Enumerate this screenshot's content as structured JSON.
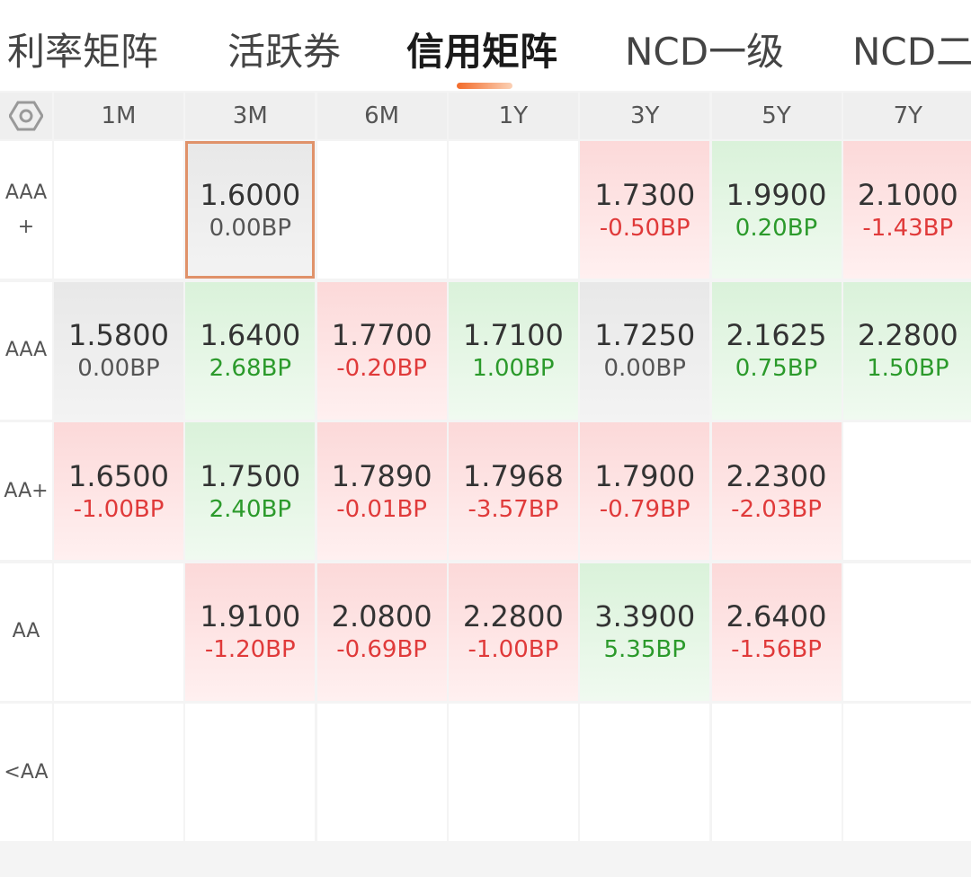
{
  "tabs": [
    "利率矩阵",
    "活跃券",
    "信用矩阵",
    "NCD一级",
    "NCD二级"
  ],
  "active_tab": 2,
  "table": {
    "columns": [
      "1M",
      "3M",
      "6M",
      "1Y",
      "3Y",
      "5Y",
      "7Y"
    ],
    "rows": [
      {
        "label": "AAA+",
        "cells": [
          null,
          {
            "rate": "1.6000",
            "change": "0.00BP"
          },
          null,
          null,
          {
            "rate": "1.7300",
            "change": "-0.50BP"
          },
          {
            "rate": "1.9900",
            "change": "0.20BP"
          },
          {
            "rate": "2.1000",
            "change": "-1.43BP"
          }
        ]
      },
      {
        "label": "AAA",
        "cells": [
          {
            "rate": "1.5800",
            "change": "0.00BP"
          },
          {
            "rate": "1.6400",
            "change": "2.68BP"
          },
          {
            "rate": "1.7700",
            "change": "-0.20BP"
          },
          {
            "rate": "1.7100",
            "change": "1.00BP"
          },
          {
            "rate": "1.7250",
            "change": "0.00BP"
          },
          {
            "rate": "2.1625",
            "change": "0.75BP"
          },
          {
            "rate": "2.2800",
            "change": "1.50BP"
          }
        ]
      },
      {
        "label": "AA+",
        "cells": [
          {
            "rate": "1.6500",
            "change": "-1.00BP"
          },
          {
            "rate": "1.7500",
            "change": "2.40BP"
          },
          {
            "rate": "1.7890",
            "change": "-0.01BP"
          },
          {
            "rate": "1.7968",
            "change": "-3.57BP"
          },
          {
            "rate": "1.7900",
            "change": "-0.79BP"
          },
          {
            "rate": "2.2300",
            "change": "-2.03BP"
          },
          null
        ]
      },
      {
        "label": "AA",
        "cells": [
          null,
          {
            "rate": "1.9100",
            "change": "-1.20BP"
          },
          {
            "rate": "2.0800",
            "change": "-0.69BP"
          },
          {
            "rate": "2.2800",
            "change": "-1.00BP"
          },
          {
            "rate": "3.3900",
            "change": "5.35BP"
          },
          {
            "rate": "2.6400",
            "change": "-1.56BP"
          },
          null
        ]
      },
      {
        "label": "<AA",
        "cells": [
          null,
          null,
          null,
          null,
          null,
          null,
          null
        ]
      }
    ]
  }
}
